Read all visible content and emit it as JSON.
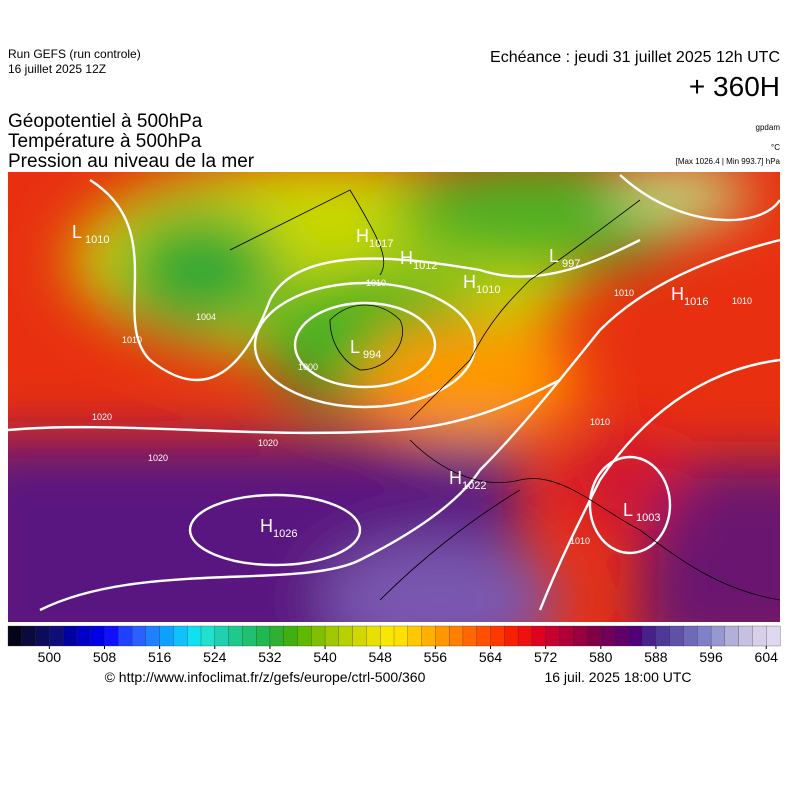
{
  "header": {
    "run": "Run GEFS (run controle)",
    "run_date": "16 juillet 2025 12Z",
    "valid": "Echéance : jeudi 31 juillet 2025 12h UTC",
    "lead": "+ 360H"
  },
  "titles": [
    "Géopotentiel à 500hPa",
    "Température à 500hPa",
    "Pression au niveau de la mer"
  ],
  "units": [
    "gpdam",
    "°C",
    "[Max 1026.4 | Min 993.7] hPa"
  ],
  "centers": [
    {
      "kind": "L",
      "value": "1010"
    },
    {
      "kind": "H",
      "value": "1017"
    },
    {
      "kind": "H",
      "value": "1012"
    },
    {
      "kind": "H",
      "value": "1010"
    },
    {
      "kind": "L",
      "value": "997"
    },
    {
      "kind": "H",
      "value": "1016"
    },
    {
      "kind": "L",
      "value": "994"
    },
    {
      "kind": "H",
      "value": "1022"
    },
    {
      "kind": "L",
      "value": "1003"
    },
    {
      "kind": "H",
      "value": "1026"
    }
  ],
  "isobar_labels": [
    "1010",
    "1020",
    "1020",
    "1020",
    "1010",
    "1000",
    "1010",
    "1010",
    "1010",
    "1010",
    "1004"
  ],
  "colorbar": {
    "xlim": [
      494,
      606
    ],
    "ticks": [
      500,
      508,
      516,
      524,
      532,
      540,
      548,
      556,
      564,
      572,
      580,
      588,
      596,
      604
    ],
    "colors": [
      "#05051a",
      "#0a0a3c",
      "#0c0c5a",
      "#0e0e78",
      "#0000a0",
      "#0000c8",
      "#0000e6",
      "#1010ff",
      "#2040ff",
      "#2a60ff",
      "#2080ff",
      "#10a0ff",
      "#10c0ff",
      "#10e0f0",
      "#20e0d0",
      "#20d0b0",
      "#20c890",
      "#20c070",
      "#20b850",
      "#30b030",
      "#40b010",
      "#60b800",
      "#80c000",
      "#a0c800",
      "#b8d000",
      "#d0d800",
      "#e8e000",
      "#f8e800",
      "#ffe000",
      "#ffc800",
      "#ffb000",
      "#ff9800",
      "#ff8000",
      "#ff6800",
      "#ff5000",
      "#ff3800",
      "#f82000",
      "#f01010",
      "#e00020",
      "#c80030",
      "#b00038",
      "#980040",
      "#800048",
      "#700058",
      "#600068",
      "#500078",
      "#48208c",
      "#503898",
      "#6050a8",
      "#7068b8",
      "#8080c8",
      "#9898d0",
      "#b0b0d8",
      "#c8c0e0",
      "#d8d0e8",
      "#e0d8f0"
    ]
  },
  "footer": {
    "url": "© http://www.infoclimat.fr/z/gefs/europe/ctrl-500/360",
    "date": "16 juil. 2025 18:00 UTC"
  }
}
